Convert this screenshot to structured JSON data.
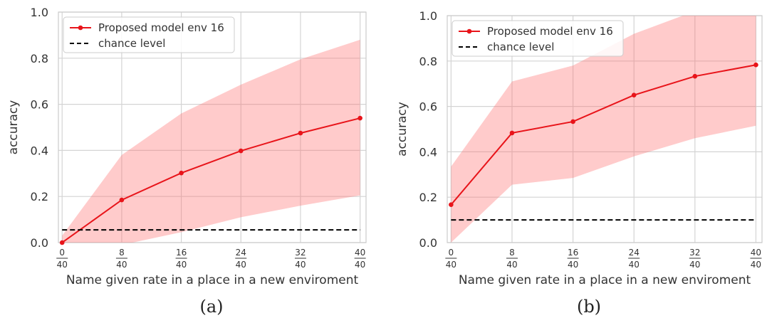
{
  "chart_data": [
    {
      "type": "line",
      "panel_label": "(a)",
      "xlabel": "Name given rate in a place in a new enviroment",
      "ylabel": "accuracy",
      "ylim": [
        0.0,
        1.0
      ],
      "yticks": [
        "0.0",
        "0.2",
        "0.4",
        "0.6",
        "0.8",
        "1.0"
      ],
      "x": [
        0,
        8,
        16,
        24,
        32,
        40
      ],
      "xtick_labels": [
        {
          "num": "0",
          "den": "40"
        },
        {
          "num": "8",
          "den": "40"
        },
        {
          "num": "16",
          "den": "40"
        },
        {
          "num": "24",
          "den": "40"
        },
        {
          "num": "32",
          "den": "40"
        },
        {
          "num": "40",
          "den": "40"
        }
      ],
      "grid": true,
      "legend_position": "top-left",
      "series": [
        {
          "name": "Proposed model env 16",
          "color": "#e8141a",
          "values": [
            0.0,
            0.185,
            0.302,
            0.398,
            0.475,
            0.54
          ],
          "band_upper": [
            0.03,
            0.38,
            0.56,
            0.685,
            0.795,
            0.88
          ],
          "band_lower": [
            -0.03,
            -0.01,
            0.045,
            0.11,
            0.16,
            0.205
          ]
        },
        {
          "name": "chance level",
          "color": "#000000",
          "style": "dashed",
          "values": [
            0.055,
            0.055,
            0.055,
            0.055,
            0.055,
            0.055
          ]
        }
      ]
    },
    {
      "type": "line",
      "panel_label": "(b)",
      "xlabel": "Name given rate in a place in a new enviroment",
      "ylabel": "accuracy",
      "ylim": [
        0.0,
        1.0
      ],
      "yticks": [
        "0.0",
        "0.2",
        "0.4",
        "0.6",
        "0.8",
        "1.0"
      ],
      "x": [
        0,
        8,
        16,
        24,
        32,
        40
      ],
      "xtick_labels": [
        {
          "num": "0",
          "den": "40"
        },
        {
          "num": "8",
          "den": "40"
        },
        {
          "num": "16",
          "den": "40"
        },
        {
          "num": "24",
          "den": "40"
        },
        {
          "num": "32",
          "den": "40"
        },
        {
          "num": "40",
          "den": "40"
        }
      ],
      "grid": true,
      "legend_position": "top-left",
      "series": [
        {
          "name": "Proposed model env 16",
          "color": "#e8141a",
          "values": [
            0.167,
            0.483,
            0.533,
            0.65,
            0.733,
            0.783
          ],
          "band_upper": [
            0.335,
            0.71,
            0.78,
            0.92,
            1.02,
            1.05
          ],
          "band_lower": [
            0.0,
            0.255,
            0.285,
            0.38,
            0.46,
            0.515
          ]
        },
        {
          "name": "chance level",
          "color": "#000000",
          "style": "dashed",
          "values": [
            0.1,
            0.1,
            0.1,
            0.1,
            0.1,
            0.1
          ]
        }
      ]
    }
  ]
}
